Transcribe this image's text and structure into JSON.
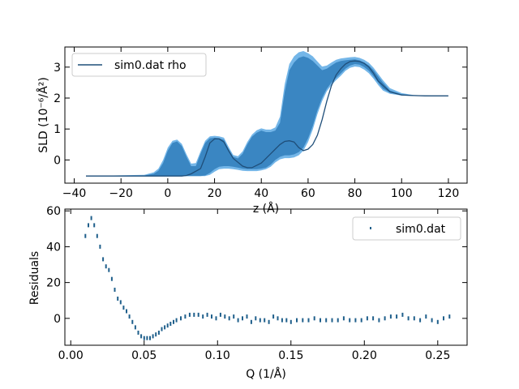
{
  "chart_data": [
    {
      "type": "area",
      "xlabel": "z (Å)",
      "ylabel": "SLD (10⁻⁶/Å²)",
      "xlim": [
        -44,
        128
      ],
      "ylim": [
        -0.75,
        3.65
      ],
      "xticks": [
        -40,
        -20,
        0,
        20,
        40,
        60,
        80,
        100,
        120
      ],
      "yticks": [
        0,
        1,
        2,
        3
      ],
      "legend": {
        "position": "top-left",
        "entries": [
          "sim0.dat rho"
        ]
      },
      "colors": {
        "line": "#1f4e79",
        "band_outer": "#74b6e8",
        "band_inner": "#3a86c2"
      },
      "series": [
        {
          "name": "sim0.dat rho",
          "x": [
            -35,
            -8,
            -4,
            0,
            2,
            4,
            6,
            8,
            10,
            14,
            16,
            18,
            20,
            22,
            24,
            26,
            28,
            32,
            34,
            36,
            40,
            44,
            46,
            48,
            50,
            52,
            54,
            56,
            58,
            60,
            62,
            64,
            66,
            68,
            70,
            72,
            74,
            76,
            78,
            80,
            82,
            84,
            86,
            88,
            90,
            95,
            100,
            105,
            110,
            120
          ],
          "y": [
            -0.52,
            -0.52,
            -0.52,
            -0.52,
            -0.52,
            -0.52,
            -0.52,
            -0.5,
            -0.45,
            -0.28,
            0.1,
            0.55,
            0.68,
            0.68,
            0.58,
            0.3,
            0.05,
            -0.2,
            -0.25,
            -0.25,
            -0.1,
            0.2,
            0.35,
            0.5,
            0.6,
            0.62,
            0.58,
            0.4,
            0.3,
            0.35,
            0.5,
            0.8,
            1.3,
            1.9,
            2.4,
            2.75,
            2.95,
            3.1,
            3.18,
            3.2,
            3.18,
            3.12,
            3.0,
            2.8,
            2.55,
            2.2,
            2.1,
            2.08,
            2.07,
            2.07
          ]
        }
      ],
      "band_inner": {
        "x": [
          -35,
          -10,
          -6,
          -4,
          -2,
          0,
          2,
          4,
          6,
          8,
          10,
          12,
          14,
          16,
          18,
          20,
          22,
          24,
          26,
          28,
          30,
          32,
          34,
          36,
          38,
          40,
          42,
          44,
          46,
          48,
          50,
          52,
          54,
          56,
          58,
          60,
          62,
          64,
          66,
          68,
          70,
          72,
          74,
          76,
          78,
          80,
          82,
          84,
          86,
          88,
          90,
          92,
          95,
          100,
          105,
          110,
          120
        ],
        "upper": [
          -0.52,
          -0.5,
          -0.45,
          -0.35,
          -0.1,
          0.3,
          0.55,
          0.6,
          0.45,
          0.1,
          -0.2,
          -0.2,
          0.2,
          0.55,
          0.7,
          0.72,
          0.7,
          0.65,
          0.35,
          0.1,
          0.05,
          0.2,
          0.5,
          0.75,
          0.88,
          0.95,
          0.9,
          0.9,
          0.95,
          1.2,
          2.2,
          2.9,
          3.15,
          3.3,
          3.35,
          3.3,
          3.2,
          3.05,
          2.9,
          2.95,
          3.05,
          3.15,
          3.2,
          3.22,
          3.24,
          3.25,
          3.22,
          3.15,
          3.05,
          2.9,
          2.7,
          2.5,
          2.25,
          2.12,
          2.09,
          2.08,
          2.07
        ],
        "lower": [
          -0.52,
          -0.52,
          -0.52,
          -0.52,
          -0.52,
          -0.52,
          -0.52,
          -0.52,
          -0.52,
          -0.52,
          -0.52,
          -0.52,
          -0.52,
          -0.5,
          -0.42,
          -0.3,
          -0.22,
          -0.2,
          -0.2,
          -0.22,
          -0.25,
          -0.28,
          -0.3,
          -0.3,
          -0.3,
          -0.28,
          -0.25,
          -0.15,
          0.0,
          0.1,
          0.15,
          0.15,
          0.18,
          0.25,
          0.4,
          0.7,
          1.1,
          1.6,
          2.0,
          2.3,
          2.5,
          2.65,
          2.8,
          2.95,
          3.05,
          3.1,
          3.08,
          3.0,
          2.88,
          2.7,
          2.5,
          2.3,
          2.18,
          2.1,
          2.08,
          2.07,
          2.07
        ]
      },
      "band_outer": {
        "x": [
          -35,
          -10,
          -6,
          -4,
          -2,
          0,
          2,
          4,
          6,
          8,
          10,
          12,
          14,
          16,
          18,
          20,
          22,
          24,
          26,
          28,
          30,
          32,
          34,
          36,
          38,
          40,
          42,
          44,
          46,
          48,
          50,
          52,
          54,
          56,
          58,
          60,
          62,
          64,
          66,
          68,
          70,
          72,
          74,
          76,
          78,
          80,
          82,
          84,
          86,
          88,
          90,
          92,
          95,
          100,
          105,
          110,
          120
        ],
        "upper": [
          -0.52,
          -0.48,
          -0.4,
          -0.28,
          0.0,
          0.4,
          0.62,
          0.66,
          0.52,
          0.18,
          -0.12,
          -0.1,
          0.28,
          0.62,
          0.76,
          0.78,
          0.76,
          0.72,
          0.42,
          0.16,
          0.12,
          0.28,
          0.58,
          0.82,
          0.96,
          1.02,
          0.98,
          0.98,
          1.05,
          1.4,
          2.45,
          3.1,
          3.35,
          3.48,
          3.52,
          3.45,
          3.35,
          3.18,
          3.02,
          3.05,
          3.15,
          3.24,
          3.28,
          3.3,
          3.32,
          3.33,
          3.3,
          3.24,
          3.14,
          2.98,
          2.78,
          2.58,
          2.32,
          2.16,
          2.1,
          2.08,
          2.07
        ],
        "lower": [
          -0.52,
          -0.52,
          -0.52,
          -0.52,
          -0.52,
          -0.52,
          -0.52,
          -0.52,
          -0.52,
          -0.52,
          -0.52,
          -0.52,
          -0.52,
          -0.52,
          -0.48,
          -0.38,
          -0.3,
          -0.28,
          -0.28,
          -0.3,
          -0.32,
          -0.35,
          -0.36,
          -0.36,
          -0.36,
          -0.34,
          -0.3,
          -0.22,
          -0.08,
          0.02,
          0.06,
          0.06,
          0.08,
          0.15,
          0.3,
          0.58,
          0.98,
          1.48,
          1.9,
          2.22,
          2.42,
          2.58,
          2.72,
          2.88,
          2.98,
          3.02,
          3.0,
          2.92,
          2.8,
          2.62,
          2.42,
          2.24,
          2.14,
          2.08,
          2.07,
          2.07,
          2.07
        ]
      }
    },
    {
      "type": "scatter",
      "xlabel": "Q (1/Å)",
      "ylabel": "Residuals",
      "xlim": [
        -0.004,
        0.27
      ],
      "ylim": [
        -15,
        61
      ],
      "xticks": [
        0.0,
        0.05,
        0.1,
        0.15,
        0.2,
        0.25
      ],
      "yticks": [
        0,
        20,
        40,
        60
      ],
      "legend": {
        "position": "top-right",
        "entries": [
          "sim0.dat"
        ]
      },
      "colors": {
        "marker": "#1f5f8b"
      },
      "series": [
        {
          "name": "sim0.dat",
          "x": [
            0.01,
            0.012,
            0.014,
            0.016,
            0.018,
            0.02,
            0.022,
            0.024,
            0.026,
            0.028,
            0.03,
            0.032,
            0.034,
            0.036,
            0.038,
            0.04,
            0.042,
            0.044,
            0.046,
            0.048,
            0.05,
            0.052,
            0.054,
            0.056,
            0.058,
            0.06,
            0.062,
            0.064,
            0.066,
            0.068,
            0.07,
            0.072,
            0.075,
            0.078,
            0.081,
            0.084,
            0.087,
            0.09,
            0.093,
            0.096,
            0.099,
            0.102,
            0.105,
            0.108,
            0.111,
            0.114,
            0.117,
            0.12,
            0.123,
            0.126,
            0.129,
            0.132,
            0.135,
            0.138,
            0.141,
            0.144,
            0.147,
            0.15,
            0.154,
            0.158,
            0.162,
            0.166,
            0.17,
            0.174,
            0.178,
            0.182,
            0.186,
            0.19,
            0.194,
            0.198,
            0.202,
            0.206,
            0.21,
            0.214,
            0.218,
            0.222,
            0.226,
            0.23,
            0.234,
            0.238,
            0.242,
            0.246,
            0.25,
            0.254,
            0.258
          ],
          "y": [
            46,
            52,
            56,
            52,
            46,
            40,
            33,
            29,
            27,
            22,
            16,
            11,
            9,
            6,
            4,
            1,
            -2,
            -5,
            -8,
            -10,
            -11,
            -11,
            -11,
            -10,
            -9,
            -8,
            -6,
            -5,
            -4,
            -3,
            -2,
            -1,
            0,
            1,
            2,
            2,
            2,
            1,
            2,
            1,
            0,
            2,
            1,
            0,
            1,
            -1,
            0,
            1,
            -2,
            0,
            -1,
            -1,
            -2,
            1,
            0,
            -1,
            -1,
            -2,
            -1,
            -1,
            -1,
            0,
            -1,
            -1,
            -1,
            -1,
            0,
            -1,
            -1,
            -1,
            0,
            0,
            -1,
            0,
            1,
            1,
            2,
            0,
            0,
            -1,
            1,
            -1,
            -2,
            0,
            1
          ]
        }
      ]
    }
  ]
}
